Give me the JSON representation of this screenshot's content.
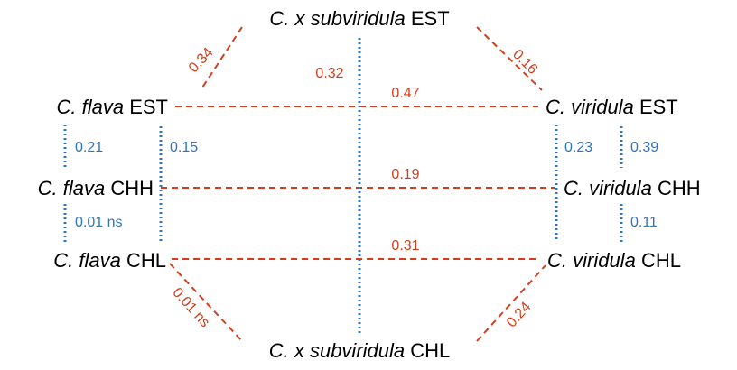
{
  "nodes": {
    "sub_est": {
      "italic": "C. x subviridula",
      "suffix": "EST"
    },
    "flava_est": {
      "italic": "C. flava",
      "suffix": "EST"
    },
    "viridula_est": {
      "italic": "C. viridula",
      "suffix": "EST"
    },
    "flava_chh": {
      "italic": "C. flava",
      "suffix": "CHH"
    },
    "viridula_chh": {
      "italic": "C. viridula",
      "suffix": "CHH"
    },
    "flava_chl": {
      "italic": "C. flava",
      "suffix": "CHL"
    },
    "viridula_chl": {
      "italic": "C. viridula",
      "suffix": "CHL"
    },
    "sub_chl": {
      "italic": "C. x subviridula",
      "suffix": "CHL"
    }
  },
  "edges": {
    "sub_est_flava_est": "0.34",
    "sub_est_viridula_est": "0.16",
    "sub_est_sub_chl": "0.32",
    "flava_est_viridula_est": "0.47",
    "flava_chh_viridula_chh": "0.19",
    "flava_chl_viridula_chl": "0.31",
    "sub_chl_flava_chl": "0.01 ns",
    "sub_chl_viridula_chl": "0.24",
    "flava_est_flava_chh": "0.21",
    "flava_est_flava_chl": "0.15",
    "flava_chh_flava_chl": "0.01 ns",
    "viridula_est_viridula_chl": "0.23",
    "viridula_est_viridula_chh": "0.39",
    "viridula_chh_viridula_chl": "0.11"
  },
  "colors": {
    "red_edge": "#d0401e",
    "blue_edge": "#2e74c0"
  }
}
